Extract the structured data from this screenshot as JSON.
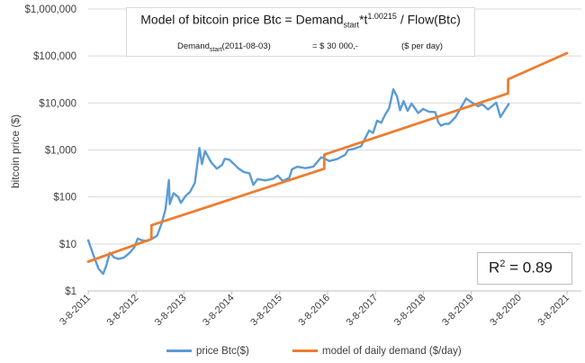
{
  "title": {
    "main_a": "Model of bitcoin price Btc = Demand",
    "main_sub": "start",
    "main_b": "*t",
    "main_sup": "1.00215",
    "main_c": " / Flow(Btc)",
    "param_label_a": "Demand",
    "param_label_sub": "start",
    "param_label_b": "(2011-08-03)",
    "param_value": "= $ 30 000,-",
    "param_unit": "($ per day)"
  },
  "r2": {
    "label": "R",
    "sup": "2",
    "value": " = 0.89"
  },
  "colors": {
    "price": "#5b9bd5",
    "model": "#ed7d31",
    "grid": "#d9d9d9",
    "axis": "#bfbfbf"
  },
  "chart_data": {
    "type": "line",
    "title": "Model of bitcoin price Btc = Demandstart*t^1.00215 / Flow(Btc)",
    "xlabel": "",
    "ylabel": "bitcoin price ($)",
    "y_scale": "log",
    "ylim": [
      1,
      1000000
    ],
    "xlim": [
      "2011-08-03",
      "2021-08-03"
    ],
    "y_ticks": [
      1,
      10,
      100,
      1000,
      10000,
      100000,
      1000000
    ],
    "y_tick_labels": [
      "$1",
      "$10",
      "$100",
      "$1,000",
      "$10,000",
      "$100,000",
      "$1,000,000"
    ],
    "x_tick_labels": [
      "3-8-2011",
      "3-8-2012",
      "3-8-2013",
      "3-8-2014",
      "3-8-2015",
      "3-8-2016",
      "3-8-2017",
      "3-8-2018",
      "3-8-2019",
      "3-8-2020",
      "3-8-2021"
    ],
    "grid": "horizontal",
    "legend_position": "bottom",
    "series": [
      {
        "name": "price Btc($)",
        "color": "#5b9bd5",
        "points": [
          [
            "2011-08-03",
            12
          ],
          [
            "2011-09-10",
            6
          ],
          [
            "2011-10-20",
            3
          ],
          [
            "2011-11-25",
            2.3
          ],
          [
            "2011-12-20",
            3.5
          ],
          [
            "2012-01-15",
            6.5
          ],
          [
            "2012-02-15",
            5.2
          ],
          [
            "2012-03-20",
            4.8
          ],
          [
            "2012-05-01",
            5.1
          ],
          [
            "2012-06-15",
            6.5
          ],
          [
            "2012-07-20",
            8.5
          ],
          [
            "2012-08-15",
            13
          ],
          [
            "2012-09-15",
            12
          ],
          [
            "2012-10-25",
            11.5
          ],
          [
            "2012-12-01",
            12.8
          ],
          [
            "2013-01-10",
            15
          ],
          [
            "2013-02-15",
            28
          ],
          [
            "2013-03-15",
            55
          ],
          [
            "2013-04-10",
            230
          ],
          [
            "2013-04-16",
            70
          ],
          [
            "2013-05-15",
            120
          ],
          [
            "2013-06-20",
            100
          ],
          [
            "2013-07-10",
            75
          ],
          [
            "2013-08-15",
            105
          ],
          [
            "2013-09-20",
            130
          ],
          [
            "2013-10-25",
            200
          ],
          [
            "2013-11-29",
            1100
          ],
          [
            "2013-12-18",
            500
          ],
          [
            "2014-01-10",
            950
          ],
          [
            "2014-02-25",
            550
          ],
          [
            "2014-04-10",
            400
          ],
          [
            "2014-05-20",
            480
          ],
          [
            "2014-06-10",
            650
          ],
          [
            "2014-07-15",
            620
          ],
          [
            "2014-08-20",
            500
          ],
          [
            "2014-09-20",
            410
          ],
          [
            "2014-11-01",
            340
          ],
          [
            "2014-12-15",
            320
          ],
          [
            "2015-01-14",
            180
          ],
          [
            "2015-02-15",
            240
          ],
          [
            "2015-04-15",
            225
          ],
          [
            "2015-06-15",
            245
          ],
          [
            "2015-07-20",
            285
          ],
          [
            "2015-08-25",
            220
          ],
          [
            "2015-10-15",
            255
          ],
          [
            "2015-11-05",
            390
          ],
          [
            "2015-12-15",
            440
          ],
          [
            "2016-02-15",
            410
          ],
          [
            "2016-04-15",
            440
          ],
          [
            "2016-06-15",
            700
          ],
          [
            "2016-07-15",
            650
          ],
          [
            "2016-08-15",
            580
          ],
          [
            "2016-10-15",
            640
          ],
          [
            "2016-12-15",
            790
          ],
          [
            "2017-01-05",
            1000
          ],
          [
            "2017-02-15",
            1050
          ],
          [
            "2017-04-15",
            1200
          ],
          [
            "2017-06-15",
            2600
          ],
          [
            "2017-07-15",
            2300
          ],
          [
            "2017-08-15",
            4200
          ],
          [
            "2017-09-15",
            3800
          ],
          [
            "2017-10-15",
            5600
          ],
          [
            "2017-11-15",
            7800
          ],
          [
            "2017-12-17",
            19500
          ],
          [
            "2018-01-15",
            13500
          ],
          [
            "2018-02-06",
            7000
          ],
          [
            "2018-03-05",
            11000
          ],
          [
            "2018-04-05",
            6800
          ],
          [
            "2018-05-05",
            9700
          ],
          [
            "2018-06-25",
            6100
          ],
          [
            "2018-08-01",
            7500
          ],
          [
            "2018-09-15",
            6500
          ],
          [
            "2018-11-01",
            6400
          ],
          [
            "2018-11-25",
            3900
          ],
          [
            "2018-12-15",
            3300
          ],
          [
            "2019-01-15",
            3600
          ],
          [
            "2019-02-15",
            3600
          ],
          [
            "2019-04-05",
            5000
          ],
          [
            "2019-05-15",
            7800
          ],
          [
            "2019-06-26",
            12500
          ],
          [
            "2019-08-01",
            10500
          ],
          [
            "2019-09-25",
            8500
          ],
          [
            "2019-10-26",
            9400
          ],
          [
            "2019-12-10",
            7300
          ],
          [
            "2020-02-10",
            10200
          ],
          [
            "2020-03-13",
            5000
          ],
          [
            "2020-04-15",
            7000
          ],
          [
            "2020-05-15",
            9500
          ]
        ]
      },
      {
        "name": "model of daily demand ($/day)",
        "color": "#ed7d31",
        "points": [
          [
            "2011-08-03",
            4.2
          ],
          [
            "2012-11-27",
            12.7
          ],
          [
            "2012-11-28",
            25
          ],
          [
            "2016-07-08",
            400
          ],
          [
            "2016-07-09",
            800
          ],
          [
            "2020-05-10",
            16000
          ],
          [
            "2020-05-11",
            32000
          ],
          [
            "2021-08-03",
            115000
          ]
        ]
      }
    ]
  }
}
